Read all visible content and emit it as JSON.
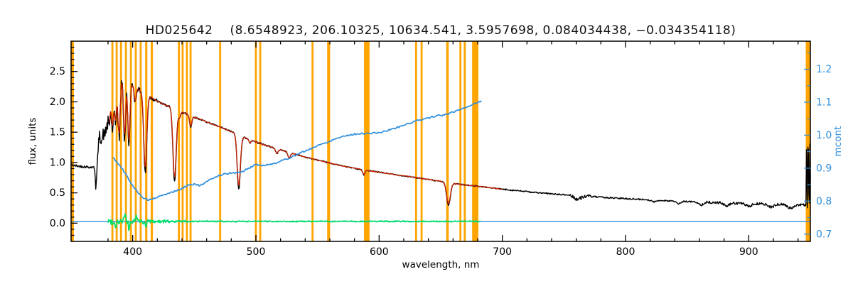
{
  "chart_data": {
    "type": "line",
    "title": {
      "object": "HD025642",
      "params": "(8.6548923, 206.10325, 10634.541, 3.5957698, 0.084034438, −0.034354118)"
    },
    "xlabel": "wavelength, nm",
    "ylabel_left": "flux, units",
    "ylabel_right": "mcont",
    "xlim": [
      350,
      950
    ],
    "ylim_left": [
      -0.3,
      3.0
    ],
    "ylim_right": [
      0.678,
      1.285
    ],
    "xticks": [
      400,
      500,
      600,
      700,
      800,
      900
    ],
    "xminor_step": 20,
    "yticks_left": [
      0.0,
      0.5,
      1.0,
      1.5,
      2.0,
      2.5
    ],
    "yminor_left_step": 0.1,
    "yticks_right": [
      0.7,
      0.8,
      0.9,
      1.0,
      1.1,
      1.2
    ],
    "yminor_right_step": 0.05,
    "legend": "none",
    "grid": false,
    "colors": {
      "spectrum": "#000000",
      "fit": "#cc2200",
      "residual": "#00e06a",
      "mcont": "#2f8fdd",
      "marker": "#ffa400",
      "axis": "#000000"
    },
    "orange_markers": [
      {
        "nm": 351,
        "w": 2.5
      },
      {
        "nm": 383.5,
        "w": 1.6
      },
      {
        "nm": 387,
        "w": 1.6
      },
      {
        "nm": 390.5,
        "w": 1.6
      },
      {
        "nm": 394.5,
        "w": 1.6
      },
      {
        "nm": 398.5,
        "w": 1.6
      },
      {
        "nm": 402.5,
        "w": 1.6
      },
      {
        "nm": 406.5,
        "w": 1.6
      },
      {
        "nm": 411,
        "w": 1.8
      },
      {
        "nm": 415.5,
        "w": 1.8
      },
      {
        "nm": 437.5,
        "w": 1.6
      },
      {
        "nm": 440.5,
        "w": 1.6
      },
      {
        "nm": 444,
        "w": 1.6
      },
      {
        "nm": 447,
        "w": 1.6
      },
      {
        "nm": 471,
        "w": 1.6
      },
      {
        "nm": 500,
        "w": 1.6
      },
      {
        "nm": 503.5,
        "w": 1.6
      },
      {
        "nm": 546,
        "w": 1.6
      },
      {
        "nm": 559,
        "w": 2.4
      },
      {
        "nm": 590,
        "w": 4.5
      },
      {
        "nm": 630,
        "w": 1.6
      },
      {
        "nm": 634.5,
        "w": 1.6
      },
      {
        "nm": 655.5,
        "w": 2.0
      },
      {
        "nm": 666,
        "w": 1.6
      },
      {
        "nm": 669.5,
        "w": 1.6
      },
      {
        "nm": 678,
        "w": 5.0
      },
      {
        "nm": 948,
        "w": 3.5
      }
    ],
    "baseline_y": 0.03,
    "spectrum": {
      "seed": 42,
      "anchors": [
        [
          350,
          0.96
        ],
        [
          356,
          0.94
        ],
        [
          362,
          0.93
        ],
        [
          368,
          0.92
        ],
        [
          370,
          1.0
        ],
        [
          372,
          1.95
        ],
        [
          374,
          2.3
        ],
        [
          376,
          2.45
        ],
        [
          378,
          2.52
        ],
        [
          381,
          2.57
        ],
        [
          384,
          2.52
        ],
        [
          388,
          2.47
        ],
        [
          392,
          2.42
        ],
        [
          396,
          2.36
        ],
        [
          400,
          2.28
        ],
        [
          405,
          2.2
        ],
        [
          410,
          2.13
        ],
        [
          415,
          2.07
        ],
        [
          420,
          2.01
        ],
        [
          425,
          1.96
        ],
        [
          430,
          1.92
        ],
        [
          435,
          1.87
        ],
        [
          440,
          1.83
        ],
        [
          445,
          1.79
        ],
        [
          450,
          1.75
        ],
        [
          455,
          1.71
        ],
        [
          460,
          1.67
        ],
        [
          465,
          1.63
        ],
        [
          470,
          1.59
        ],
        [
          475,
          1.55
        ],
        [
          480,
          1.51
        ],
        [
          485,
          1.47
        ],
        [
          490,
          1.42
        ],
        [
          495,
          1.38
        ],
        [
          500,
          1.34
        ],
        [
          510,
          1.27
        ],
        [
          520,
          1.21
        ],
        [
          530,
          1.15
        ],
        [
          540,
          1.09
        ],
        [
          550,
          1.04
        ],
        [
          560,
          0.99
        ],
        [
          570,
          0.945
        ],
        [
          580,
          0.905
        ],
        [
          590,
          0.87
        ],
        [
          600,
          0.84
        ],
        [
          610,
          0.81
        ],
        [
          620,
          0.78
        ],
        [
          630,
          0.75
        ],
        [
          640,
          0.72
        ],
        [
          650,
          0.69
        ],
        [
          660,
          0.655
        ],
        [
          670,
          0.63
        ],
        [
          680,
          0.61
        ],
        [
          690,
          0.585
        ],
        [
          700,
          0.56
        ],
        [
          715,
          0.53
        ],
        [
          730,
          0.5
        ],
        [
          745,
          0.475
        ],
        [
          760,
          0.455
        ],
        [
          775,
          0.435
        ],
        [
          790,
          0.415
        ],
        [
          805,
          0.4
        ],
        [
          820,
          0.385
        ],
        [
          840,
          0.365
        ],
        [
          860,
          0.35
        ],
        [
          880,
          0.335
        ],
        [
          900,
          0.325
        ],
        [
          920,
          0.315
        ],
        [
          940,
          0.305
        ],
        [
          950,
          0.3
        ]
      ],
      "lines": [
        [
          370.5,
          0.5,
          0.7
        ],
        [
          372.0,
          0.6,
          0.7
        ],
        [
          373.7,
          0.7,
          0.8
        ],
        [
          375.3,
          0.8,
          0.8
        ],
        [
          377.1,
          0.9,
          0.9
        ],
        [
          379.0,
          0.8,
          0.9
        ],
        [
          381.0,
          0.85,
          0.9
        ],
        [
          383.5,
          0.95,
          1.0
        ],
        [
          386.0,
          0.8,
          0.9
        ],
        [
          388.9,
          1.05,
          1.0
        ],
        [
          393.4,
          1.0,
          0.9
        ],
        [
          396.9,
          1.05,
          0.9
        ],
        [
          402.0,
          0.25,
          0.8
        ],
        [
          410.2,
          1.3,
          1.2
        ],
        [
          434.0,
          1.2,
          1.3
        ],
        [
          438.0,
          0.12,
          0.8
        ],
        [
          447.1,
          0.18,
          0.9
        ],
        [
          486.1,
          0.9,
          1.3
        ],
        [
          495.0,
          0.06,
          0.8
        ],
        [
          517.0,
          0.08,
          1.0
        ],
        [
          527.0,
          0.1,
          1.0
        ],
        [
          587.6,
          0.08,
          0.9
        ],
        [
          656.3,
          0.37,
          1.5
        ],
        [
          761.0,
          0.06,
          2.5
        ],
        [
          823.0,
          0.03,
          2.0
        ],
        [
          843.0,
          0.04,
          2.0
        ],
        [
          861.0,
          0.045,
          2.0
        ],
        [
          882.0,
          0.05,
          2.2
        ],
        [
          900.0,
          0.045,
          2.5
        ],
        [
          918.0,
          0.05,
          2.5
        ],
        [
          934.0,
          0.06,
          2.5
        ]
      ],
      "noise_regions": [
        [
          350,
          368,
          0.02
        ],
        [
          368,
          372,
          0.05
        ],
        [
          372,
          396,
          0.11
        ],
        [
          396,
          420,
          0.035
        ],
        [
          420,
          450,
          0.018
        ],
        [
          450,
          520,
          0.013
        ],
        [
          520,
          700,
          0.009
        ],
        [
          700,
          755,
          0.011
        ],
        [
          755,
          772,
          0.028
        ],
        [
          772,
          860,
          0.012
        ],
        [
          860,
          946,
          0.02
        ]
      ],
      "end_blob": {
        "from": 946.5,
        "base": 0.25,
        "range": 1.12
      }
    },
    "fit": {
      "range": [
        380.5,
        700
      ],
      "depth_scale": 0.93,
      "seed": 7
    },
    "residual": {
      "range": [
        380,
        683
      ],
      "base": 0.03,
      "seed": 99,
      "noise_regions": [
        [
          380,
          388,
          0.05
        ],
        [
          388,
          400,
          0.06
        ],
        [
          400,
          415,
          0.045
        ],
        [
          415,
          430,
          0.025
        ],
        [
          430,
          450,
          0.015
        ],
        [
          450,
          683,
          0.01
        ]
      ],
      "spikes": [
        [
          386,
          -0.09
        ],
        [
          393.5,
          0.1
        ],
        [
          397,
          -0.12
        ],
        [
          403,
          0.08
        ],
        [
          410.5,
          -0.1
        ]
      ]
    },
    "mcont_points": [
      [
        384,
        0.932
      ],
      [
        388,
        0.915
      ],
      [
        392,
        0.895
      ],
      [
        396,
        0.872
      ],
      [
        400,
        0.846
      ],
      [
        404,
        0.828
      ],
      [
        408,
        0.812
      ],
      [
        412,
        0.804
      ],
      [
        416,
        0.806
      ],
      [
        420,
        0.812
      ],
      [
        425,
        0.818
      ],
      [
        430,
        0.825
      ],
      [
        435,
        0.831
      ],
      [
        440,
        0.838
      ],
      [
        445,
        0.849
      ],
      [
        450,
        0.852
      ],
      [
        455,
        0.847
      ],
      [
        460,
        0.858
      ],
      [
        465,
        0.87
      ],
      [
        470,
        0.878
      ],
      [
        475,
        0.883
      ],
      [
        480,
        0.885
      ],
      [
        485,
        0.886
      ],
      [
        490,
        0.892
      ],
      [
        495,
        0.901
      ],
      [
        500,
        0.912
      ],
      [
        505,
        0.908
      ],
      [
        510,
        0.91
      ],
      [
        515,
        0.915
      ],
      [
        520,
        0.921
      ],
      [
        525,
        0.928
      ],
      [
        530,
        0.936
      ],
      [
        535,
        0.944
      ],
      [
        540,
        0.952
      ],
      [
        545,
        0.96
      ],
      [
        550,
        0.968
      ],
      [
        555,
        0.975
      ],
      [
        560,
        0.982
      ],
      [
        565,
        0.99
      ],
      [
        570,
        0.996
      ],
      [
        575,
        1.0
      ],
      [
        580,
        1.003
      ],
      [
        585,
        1.005
      ],
      [
        590,
        1.005
      ],
      [
        595,
        1.006
      ],
      [
        600,
        1.008
      ],
      [
        605,
        1.012
      ],
      [
        610,
        1.018
      ],
      [
        615,
        1.024
      ],
      [
        620,
        1.03
      ],
      [
        625,
        1.037
      ],
      [
        630,
        1.043
      ],
      [
        635,
        1.048
      ],
      [
        640,
        1.053
      ],
      [
        645,
        1.057
      ],
      [
        650,
        1.06
      ],
      [
        655,
        1.063
      ],
      [
        660,
        1.07
      ],
      [
        665,
        1.077
      ],
      [
        670,
        1.084
      ],
      [
        675,
        1.092
      ],
      [
        680,
        1.1
      ],
      [
        683,
        1.103
      ]
    ]
  }
}
